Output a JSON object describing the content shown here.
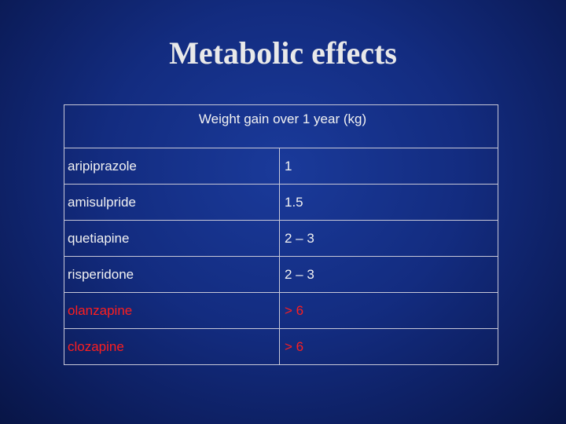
{
  "slide": {
    "title": "Metabolic effects"
  },
  "table": {
    "header": "Weight gain over 1 year (kg)",
    "rows": [
      {
        "drug": "aripiprazole",
        "value": "1",
        "highlight": false
      },
      {
        "drug": "amisulpride",
        "value": "1.5",
        "highlight": false
      },
      {
        "drug": "quetiapine",
        "value": "2 – 3",
        "highlight": false
      },
      {
        "drug": "risperidone",
        "value": "2 – 3",
        "highlight": false
      },
      {
        "drug": "olanzapine",
        "value": "> 6",
        "highlight": true
      },
      {
        "drug": "clozapine",
        "value": "> 6",
        "highlight": true
      }
    ],
    "highlight_color": "#ff1e1e",
    "text_color": "#f2f2f2"
  },
  "colors": {
    "background": "#132c80",
    "title": "#e9e9e9"
  }
}
